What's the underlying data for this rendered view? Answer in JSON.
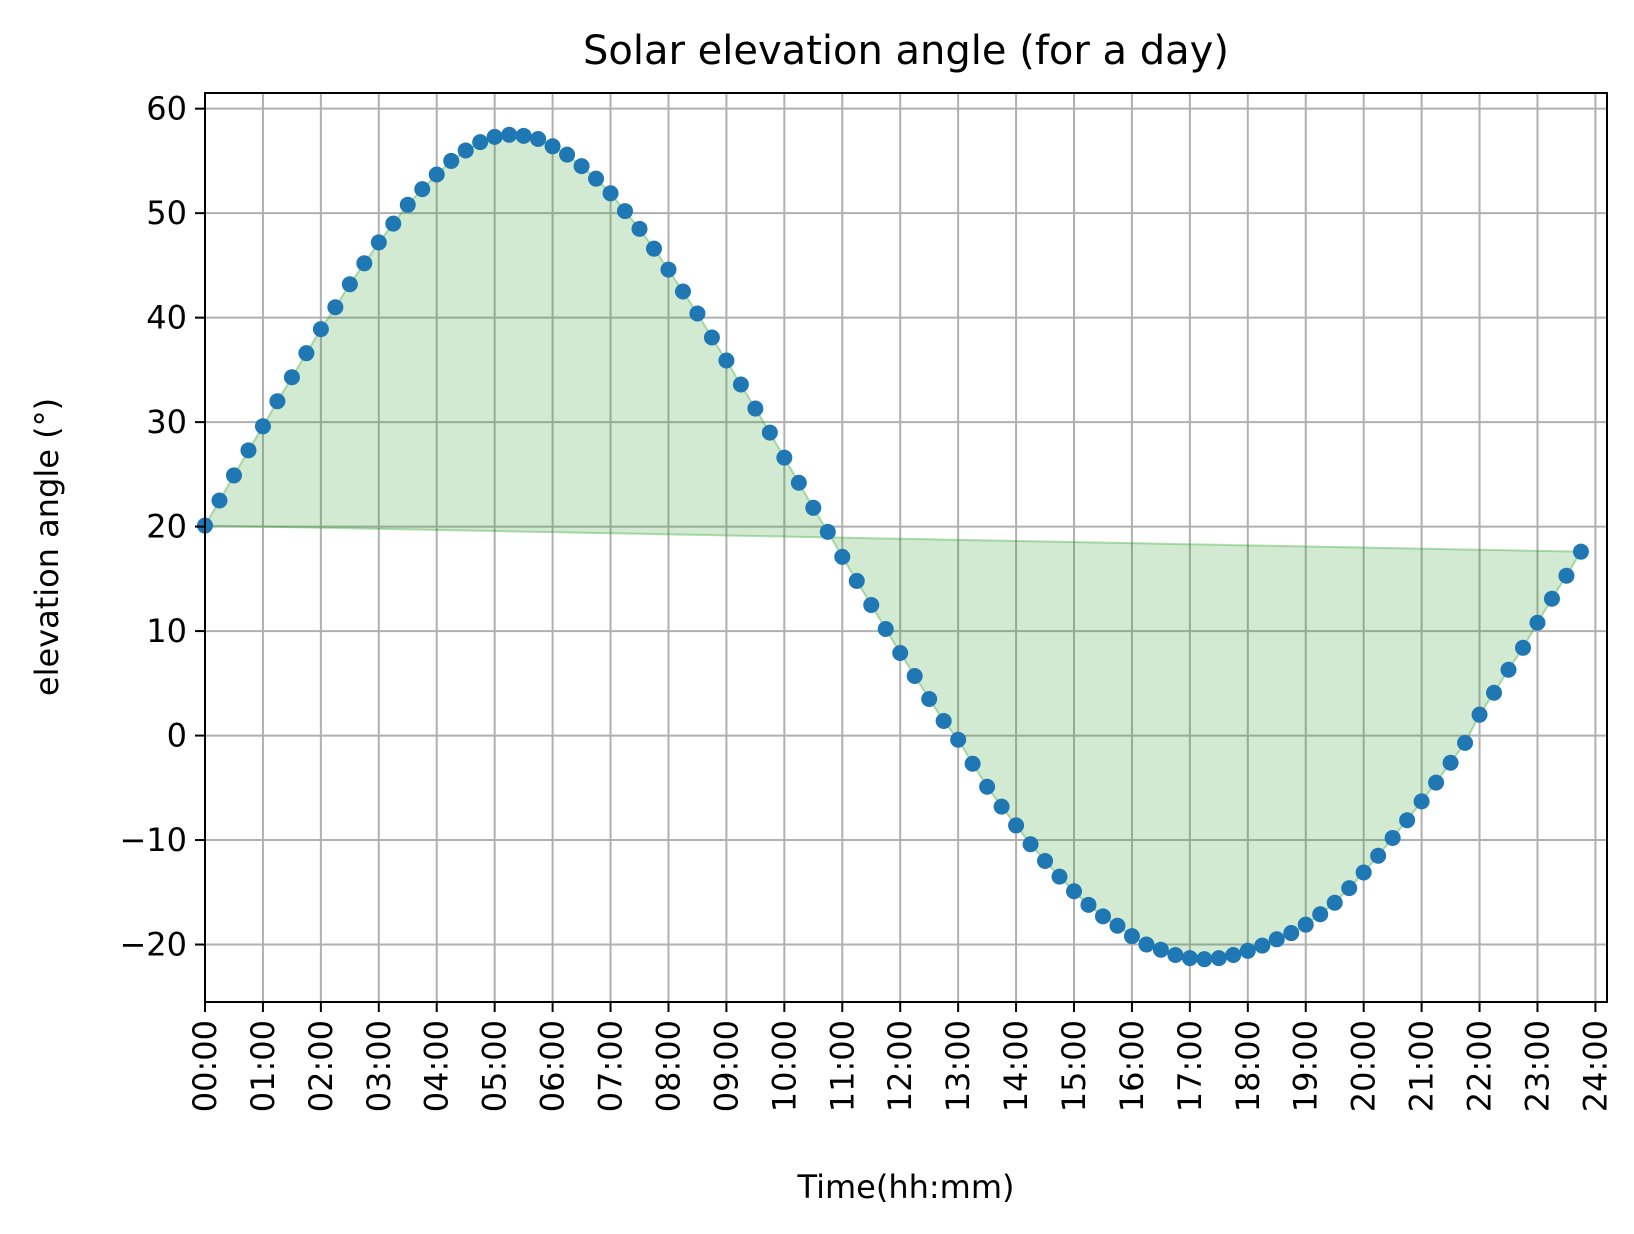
{
  "chart_data": {
    "type": "scatter",
    "title": "Solar elevation angle (for a day)",
    "xlabel": "Time(hh:mm)",
    "ylabel": "elevation angle (°)",
    "x_unit": "hours",
    "xlim": [
      0,
      24.2
    ],
    "ylim": [
      -25.5,
      61.5
    ],
    "x_ticks": [
      "00:00",
      "01:00",
      "02:00",
      "03:00",
      "04:00",
      "05:00",
      "06:00",
      "07:00",
      "08:00",
      "09:00",
      "10:00",
      "11:00",
      "12:00",
      "13:00",
      "14:00",
      "15:00",
      "16:00",
      "17:00",
      "18:00",
      "19:00",
      "20:00",
      "21:00",
      "22:00",
      "23:00",
      "24:00"
    ],
    "y_ticks": [
      60,
      50,
      40,
      30,
      20,
      10,
      0,
      -10,
      -20
    ],
    "y_tick_labels": [
      "60",
      "50",
      "40",
      "30",
      "20",
      "10",
      "0",
      "−10",
      "−20"
    ],
    "grid": true,
    "colors": {
      "points": "#1f77b4",
      "fill": "#2ca02c",
      "grid": "#b0b0b0"
    },
    "fill_between": {
      "baseline_start": 20.1,
      "baseline_end": 17.6,
      "fill_opacity": 0.22
    },
    "series": [
      {
        "x_step_hours": 0.25,
        "x_start": 0,
        "values": [
          20.1,
          22.5,
          24.9,
          27.3,
          29.6,
          32.0,
          34.3,
          36.6,
          38.9,
          41.0,
          43.2,
          45.2,
          47.2,
          49.0,
          50.8,
          52.3,
          53.7,
          55.0,
          56.0,
          56.8,
          57.3,
          57.5,
          57.4,
          57.1,
          56.4,
          55.6,
          54.5,
          53.3,
          51.9,
          50.2,
          48.5,
          46.6,
          44.6,
          42.5,
          40.4,
          38.1,
          35.9,
          33.6,
          31.3,
          29.0,
          26.6,
          24.2,
          21.8,
          19.5,
          17.1,
          14.8,
          12.5,
          10.2,
          7.9,
          5.7,
          3.5,
          1.4,
          -0.4,
          -2.7,
          -4.9,
          -6.8,
          -8.6,
          -10.4,
          -12.0,
          -13.5,
          -14.9,
          -16.2,
          -17.3,
          -18.2,
          -19.2,
          -20.0,
          -20.5,
          -21.0,
          -21.3,
          -21.4,
          -21.3,
          -21.0,
          -20.6,
          -20.1,
          -19.5,
          -18.9,
          -18.1,
          -17.1,
          -16.0,
          -14.6,
          -13.1,
          -11.5,
          -9.8,
          -8.1,
          -6.3,
          -4.5,
          -2.6,
          -0.7,
          2.0,
          4.1,
          6.3,
          8.4,
          10.8,
          13.1,
          15.3,
          17.6
        ]
      }
    ]
  }
}
